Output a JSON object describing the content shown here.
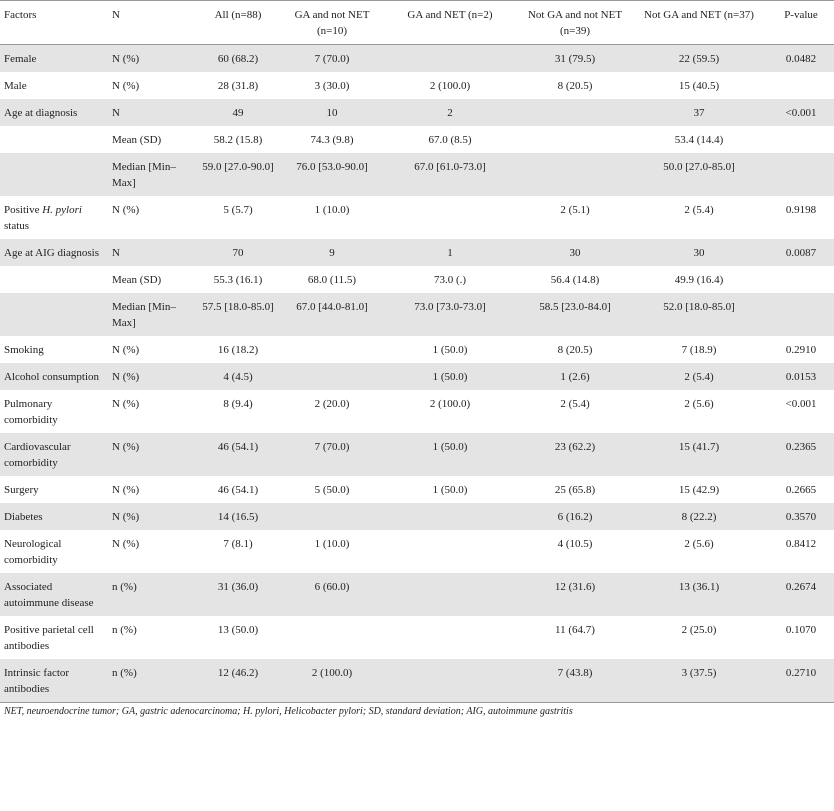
{
  "headers": [
    "Factors",
    "N",
    "All (n=88)",
    "GA and not NET (n=10)",
    "GA and NET (n=2)",
    "Not GA and not NET (n=39)",
    "Not GA and NET (n=37)",
    "P-value"
  ],
  "rows": [
    {
      "factor": "Female",
      "n": "N (%)",
      "all": "60 (68.2)",
      "ga_not_net": "7 (70.0)",
      "ga_net": "",
      "not_ga_not_net": "31 (79.5)",
      "not_ga_net": "22 (59.5)",
      "p": "0.0482"
    },
    {
      "factor": "Male",
      "n": "N (%)",
      "all": "28 (31.8)",
      "ga_not_net": "3 (30.0)",
      "ga_net": "2 (100.0)",
      "not_ga_not_net": "8 (20.5)",
      "not_ga_net": "15 (40.5)",
      "p": ""
    },
    {
      "factor": "Age at diagnosis",
      "n": "N",
      "all": "49",
      "ga_not_net": "10",
      "ga_net": "2",
      "not_ga_not_net": "",
      "not_ga_net": "37",
      "p": "<0.001"
    },
    {
      "factor": "",
      "n": "Mean (SD)",
      "all": "58.2 (15.8)",
      "ga_not_net": "74.3 (9.8)",
      "ga_net": "67.0 (8.5)",
      "not_ga_not_net": "",
      "not_ga_net": "53.4 (14.4)",
      "p": ""
    },
    {
      "factor": "",
      "n": "Median [Min–Max]",
      "all": "59.0 [27.0-90.0]",
      "ga_not_net": "76.0 [53.0-90.0]",
      "ga_net": "67.0 [61.0-73.0]",
      "not_ga_not_net": "",
      "not_ga_net": "50.0 [27.0-85.0]",
      "p": ""
    },
    {
      "factor": "Positive H. pylori status",
      "n": "N (%)",
      "all": "5 (5.7)",
      "ga_not_net": "1 (10.0)",
      "ga_net": "",
      "not_ga_not_net": "2 (5.1)",
      "not_ga_net": "2 (5.4)",
      "p": "0.9198"
    },
    {
      "factor": "Age at AIG diagnosis",
      "n": "N",
      "all": "70",
      "ga_not_net": "9",
      "ga_net": "1",
      "not_ga_not_net": "30",
      "not_ga_net": "30",
      "p": "0.0087"
    },
    {
      "factor": "",
      "n": "Mean (SD)",
      "all": "55.3 (16.1)",
      "ga_not_net": "68.0 (11.5)",
      "ga_net": "73.0 (.)",
      "not_ga_not_net": "56.4 (14.8)",
      "not_ga_net": "49.9 (16.4)",
      "p": ""
    },
    {
      "factor": "",
      "n": "Median [Min–Max]",
      "all": "57.5 [18.0-85.0]",
      "ga_not_net": "67.0 [44.0-81.0]",
      "ga_net": "73.0 [73.0-73.0]",
      "not_ga_not_net": "58.5 [23.0-84.0]",
      "not_ga_net": "52.0 [18.0-85.0]",
      "p": ""
    },
    {
      "factor": "Smoking",
      "n": "N (%)",
      "all": "16 (18.2)",
      "ga_not_net": "",
      "ga_net": "1 (50.0)",
      "not_ga_not_net": "8 (20.5)",
      "not_ga_net": "7 (18.9)",
      "p": "0.2910"
    },
    {
      "factor": "Alcohol consumption",
      "n": "N (%)",
      "all": "4 (4.5)",
      "ga_not_net": "",
      "ga_net": "1 (50.0)",
      "not_ga_not_net": "1 (2.6)",
      "not_ga_net": "2 (5.4)",
      "p": "0.0153"
    },
    {
      "factor": "Pulmonary comorbidity",
      "n": "N (%)",
      "all": "8 (9.4)",
      "ga_not_net": "2 (20.0)",
      "ga_net": "2 (100.0)",
      "not_ga_not_net": "2 (5.4)",
      "not_ga_net": "2 (5.6)",
      "p": "<0.001"
    },
    {
      "factor": "Cardiovascular comorbidity",
      "n": "N (%)",
      "all": "46 (54.1)",
      "ga_not_net": "7 (70.0)",
      "ga_net": "1 (50.0)",
      "not_ga_not_net": "23 (62.2)",
      "not_ga_net": "15 (41.7)",
      "p": "0.2365"
    },
    {
      "factor": "Surgery",
      "n": "N (%)",
      "all": "46 (54.1)",
      "ga_not_net": "5 (50.0)",
      "ga_net": "1 (50.0)",
      "not_ga_not_net": "25 (65.8)",
      "not_ga_net": "15 (42.9)",
      "p": "0.2665"
    },
    {
      "factor": "Diabetes",
      "n": "N (%)",
      "all": "14 (16.5)",
      "ga_not_net": "",
      "ga_net": "",
      "not_ga_not_net": "6 (16.2)",
      "not_ga_net": "8 (22.2)",
      "p": "0.3570"
    },
    {
      "factor": "Neurological comorbidity",
      "n": "N (%)",
      "all": "7 (8.1)",
      "ga_not_net": "1 (10.0)",
      "ga_net": "",
      "not_ga_not_net": "4 (10.5)",
      "not_ga_net": "2 (5.6)",
      "p": "0.8412"
    },
    {
      "factor": "Associated autoimmune disease",
      "n": "n (%)",
      "all": "31 (36.0)",
      "ga_not_net": "6 (60.0)",
      "ga_net": "",
      "not_ga_not_net": "12 (31.6)",
      "not_ga_net": "13 (36.1)",
      "p": "0.2674"
    },
    {
      "factor": "Positive parietal cell antibodies",
      "n": "n (%)",
      "all": "13 (50.0)",
      "ga_not_net": "",
      "ga_net": "",
      "not_ga_not_net": "11 (64.7)",
      "not_ga_net": "2 (25.0)",
      "p": "0.1070"
    },
    {
      "factor": "Intrinsic factor antibodies",
      "n": "n (%)",
      "all": "12 (46.2)",
      "ga_not_net": "2 (100.0)",
      "ga_net": "",
      "not_ga_not_net": "7 (43.8)",
      "not_ga_net": "3 (37.5)",
      "p": "0.2710"
    }
  ],
  "footnote": "NET, neuroendocrine tumor; GA, gastric adenocarcinoma; H. pylori, Helicobacter pylori; SD, standard deviation; AIG, autoimmune gastritis"
}
